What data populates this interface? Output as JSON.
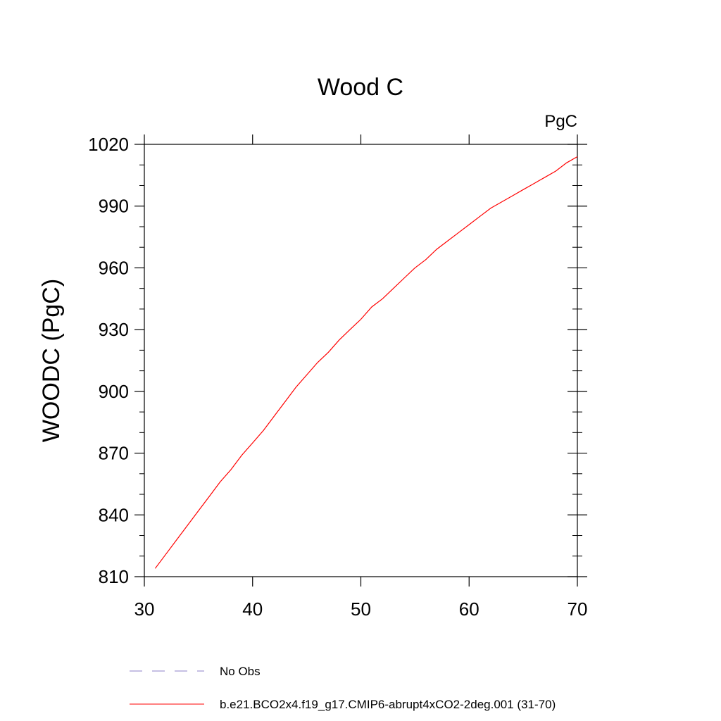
{
  "chart_data": {
    "type": "line",
    "title": "Wood C",
    "units_label": "PgC",
    "ylabel": "WOODC  (PgC)",
    "xlabel": "",
    "xlim": [
      30,
      70
    ],
    "ylim": [
      810,
      1020
    ],
    "x_ticks": [
      30,
      40,
      50,
      60,
      70
    ],
    "y_ticks": [
      810,
      840,
      870,
      900,
      930,
      960,
      990,
      1020
    ],
    "x_ticks_labels": [
      "30",
      "40",
      "50",
      "60",
      "70"
    ],
    "y_ticks_labels": [
      "810",
      "840",
      "870",
      "900",
      "930",
      "960",
      "990",
      "1020"
    ],
    "grid": false,
    "legend_placement": "bottom",
    "series": [
      {
        "name": "b.e21.BCO2x4.f19_g17.CMIP6-abrupt4xCO2-2deg.001 (31-70)",
        "color": "#ff0000",
        "style": "solid",
        "x": [
          31,
          32,
          33,
          34,
          35,
          36,
          37,
          38,
          39,
          40,
          41,
          42,
          43,
          44,
          45,
          46,
          47,
          48,
          49,
          50,
          51,
          52,
          53,
          54,
          55,
          56,
          57,
          58,
          59,
          60,
          61,
          62,
          63,
          64,
          65,
          66,
          67,
          68,
          69,
          70
        ],
        "values": [
          814,
          821,
          828,
          835,
          842,
          849,
          856,
          862,
          869,
          875,
          881,
          888,
          895,
          902,
          908,
          914,
          919,
          925,
          930,
          935,
          941,
          945,
          950,
          955,
          960,
          964,
          969,
          973,
          977,
          981,
          985,
          989,
          992,
          995,
          998,
          1001,
          1004,
          1007,
          1011,
          1014
        ]
      },
      {
        "name": "No Obs",
        "color": "#8c82c8",
        "style": "dashed",
        "x": [],
        "values": []
      }
    ]
  }
}
